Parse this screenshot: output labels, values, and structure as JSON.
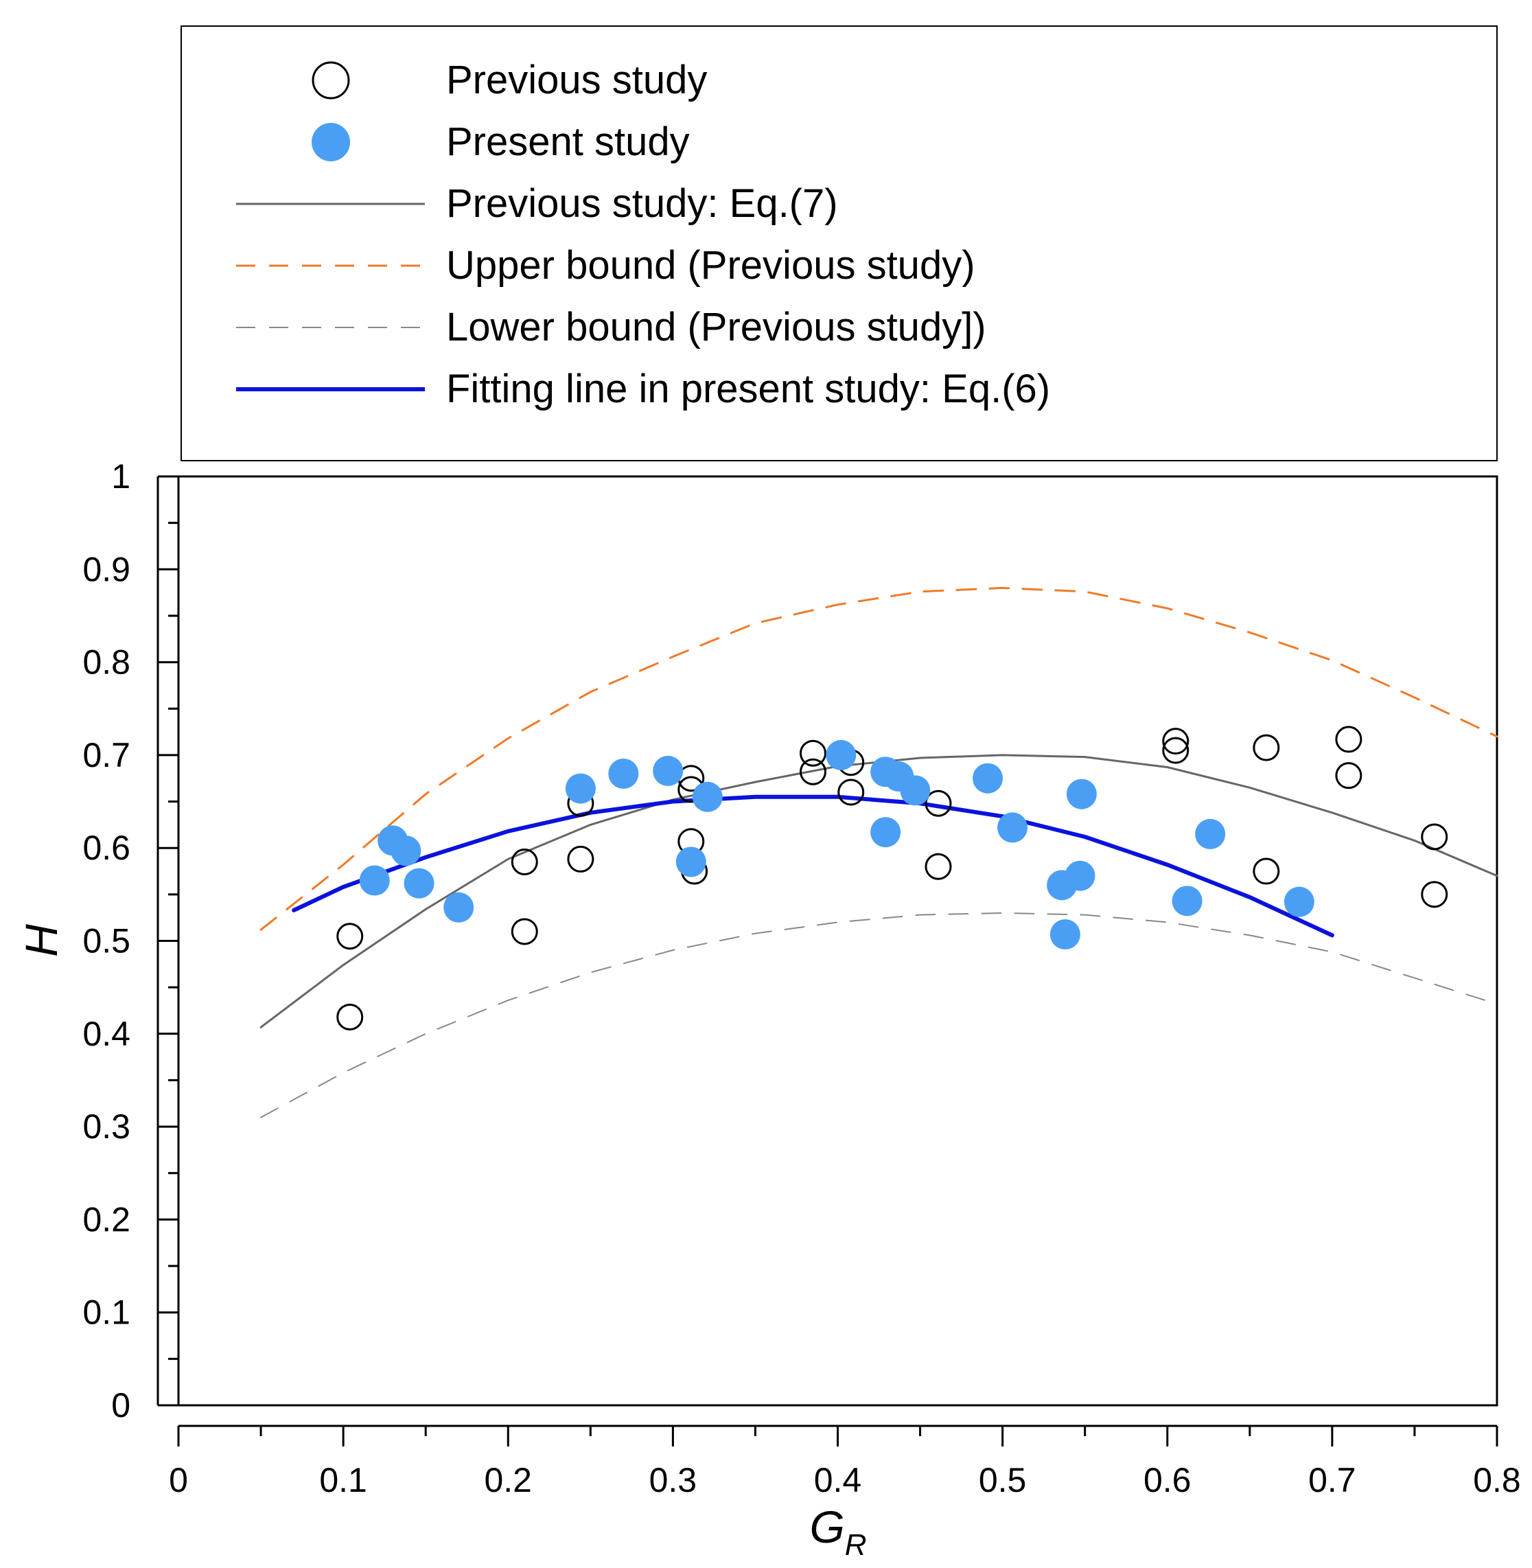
{
  "chart_data": {
    "type": "scatter",
    "xlabel": "G",
    "xlabel_subscript": "R",
    "ylabel": "H",
    "xlim": [
      0,
      0.8
    ],
    "ylim": [
      0,
      1
    ],
    "x_ticks": [
      "0",
      "0.1",
      "0.2",
      "0.3",
      "0.4",
      "0.5",
      "0.6",
      "0.7",
      "0.8"
    ],
    "y_ticks": [
      "0",
      "0.1",
      "0.2",
      "0.3",
      "0.4",
      "0.5",
      "0.6",
      "0.7",
      "0.8",
      "0.9",
      "1"
    ],
    "legend": [
      {
        "label": "Previous study",
        "kind": "open-circle"
      },
      {
        "label": "Present study",
        "kind": "filled-circle"
      },
      {
        "label": "Previous study: Eq.(7)",
        "kind": "gray-line"
      },
      {
        "label": "Upper bound  (Previous study)",
        "kind": "orange-dash"
      },
      {
        "label": "Lower bound  (Previous study])",
        "kind": "gray-dash"
      },
      {
        "label": "Fitting line in present study: Eq.(6)",
        "kind": "blue-line"
      }
    ],
    "series": [
      {
        "name": "Previous study",
        "style": "open-circle",
        "color": "#000000",
        "points": [
          [
            0.104,
            0.505
          ],
          [
            0.104,
            0.418
          ],
          [
            0.21,
            0.585
          ],
          [
            0.21,
            0.51
          ],
          [
            0.244,
            0.648
          ],
          [
            0.244,
            0.588
          ],
          [
            0.311,
            0.675
          ],
          [
            0.311,
            0.663
          ],
          [
            0.311,
            0.607
          ],
          [
            0.313,
            0.575
          ],
          [
            0.385,
            0.702
          ],
          [
            0.385,
            0.682
          ],
          [
            0.408,
            0.692
          ],
          [
            0.408,
            0.66
          ],
          [
            0.461,
            0.648
          ],
          [
            0.461,
            0.58
          ],
          [
            0.605,
            0.715
          ],
          [
            0.605,
            0.705
          ],
          [
            0.66,
            0.708
          ],
          [
            0.66,
            0.575
          ],
          [
            0.71,
            0.717
          ],
          [
            0.71,
            0.678
          ],
          [
            0.762,
            0.612
          ],
          [
            0.762,
            0.55
          ]
        ]
      },
      {
        "name": "Present study",
        "style": "filled-circle",
        "color": "#4a9ff5",
        "points": [
          [
            0.119,
            0.565
          ],
          [
            0.13,
            0.608
          ],
          [
            0.138,
            0.597
          ],
          [
            0.146,
            0.562
          ],
          [
            0.17,
            0.536
          ],
          [
            0.244,
            0.664
          ],
          [
            0.27,
            0.68
          ],
          [
            0.297,
            0.683
          ],
          [
            0.311,
            0.585
          ],
          [
            0.321,
            0.655
          ],
          [
            0.402,
            0.7
          ],
          [
            0.429,
            0.617
          ],
          [
            0.429,
            0.682
          ],
          [
            0.437,
            0.677
          ],
          [
            0.447,
            0.662
          ],
          [
            0.491,
            0.675
          ],
          [
            0.506,
            0.622
          ],
          [
            0.536,
            0.56
          ],
          [
            0.538,
            0.507
          ],
          [
            0.547,
            0.57
          ],
          [
            0.548,
            0.658
          ],
          [
            0.612,
            0.543
          ],
          [
            0.626,
            0.615
          ],
          [
            0.68,
            0.542
          ]
        ]
      },
      {
        "name": "Previous study: Eq.(7)",
        "style": "line",
        "color": "#666666",
        "x": [
          0.05,
          0.1,
          0.15,
          0.2,
          0.25,
          0.3,
          0.35,
          0.4,
          0.45,
          0.5,
          0.55,
          0.6,
          0.65,
          0.7,
          0.75,
          0.8
        ],
        "values": [
          0.407,
          0.474,
          0.534,
          0.588,
          0.625,
          0.652,
          0.671,
          0.688,
          0.697,
          0.7,
          0.698,
          0.687,
          0.665,
          0.638,
          0.608,
          0.57
        ]
      },
      {
        "name": "Upper bound  (Previous study)",
        "style": "dashed",
        "color": "#f07a28",
        "x": [
          0.05,
          0.1,
          0.15,
          0.2,
          0.25,
          0.3,
          0.35,
          0.4,
          0.45,
          0.5,
          0.55,
          0.6,
          0.65,
          0.7,
          0.75,
          0.8
        ],
        "values": [
          0.512,
          0.582,
          0.658,
          0.718,
          0.768,
          0.806,
          0.842,
          0.862,
          0.876,
          0.88,
          0.876,
          0.858,
          0.832,
          0.802,
          0.762,
          0.72
        ]
      },
      {
        "name": "Lower bound  (Previous study])",
        "style": "dashed",
        "color": "#888888",
        "x": [
          0.05,
          0.1,
          0.15,
          0.2,
          0.25,
          0.3,
          0.35,
          0.4,
          0.45,
          0.5,
          0.55,
          0.6,
          0.65,
          0.7,
          0.75,
          0.8
        ],
        "values": [
          0.31,
          0.358,
          0.4,
          0.436,
          0.466,
          0.49,
          0.508,
          0.52,
          0.528,
          0.53,
          0.528,
          0.52,
          0.506,
          0.488,
          0.46,
          0.432
        ]
      },
      {
        "name": "Fitting line in present study: Eq.(6)",
        "style": "line",
        "color": "#0a12dc",
        "x": [
          0.07,
          0.1,
          0.15,
          0.2,
          0.25,
          0.3,
          0.35,
          0.4,
          0.45,
          0.5,
          0.55,
          0.6,
          0.65,
          0.7
        ],
        "values": [
          0.533,
          0.558,
          0.59,
          0.618,
          0.638,
          0.65,
          0.655,
          0.655,
          0.648,
          0.634,
          0.612,
          0.582,
          0.547,
          0.506
        ]
      }
    ]
  }
}
